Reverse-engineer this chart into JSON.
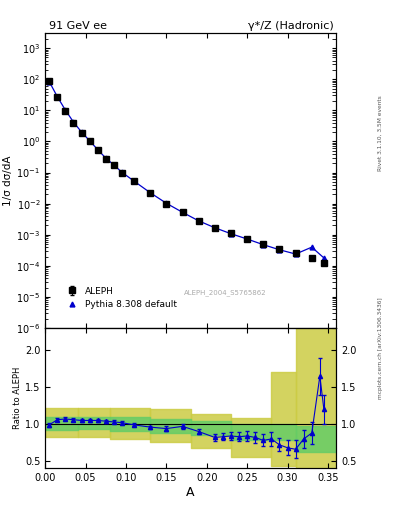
{
  "title_left": "91 GeV ee",
  "title_right": "γ*/Z (Hadronic)",
  "ylabel_main": "1/σ dσ/dA",
  "ylabel_ratio": "Ratio to ALEPH",
  "xlabel": "A",
  "right_label": "Rivet 3.1.10, 3.5M events",
  "watermark": "ALEPH_2004_S5765862",
  "arxiv_label": "mcplots.cern.ch [arXiv:1306.3436]",
  "legend_data": "ALEPH",
  "legend_mc": "Pythia 8.308 default",
  "aleph_x": [
    0.005,
    0.015,
    0.025,
    0.035,
    0.045,
    0.055,
    0.065,
    0.075,
    0.085,
    0.095,
    0.11,
    0.13,
    0.15,
    0.17,
    0.19,
    0.21,
    0.23,
    0.25,
    0.27,
    0.29,
    0.31,
    0.33,
    0.345
  ],
  "aleph_y": [
    85.0,
    26.0,
    9.5,
    4.0,
    1.9,
    1.0,
    0.52,
    0.28,
    0.17,
    0.1,
    0.052,
    0.022,
    0.01,
    0.0052,
    0.0028,
    0.0017,
    0.0011,
    0.00075,
    0.0005,
    0.00035,
    0.00025,
    0.00018,
    0.00012
  ],
  "aleph_yerr": [
    3.0,
    1.0,
    0.4,
    0.15,
    0.07,
    0.04,
    0.02,
    0.012,
    0.007,
    0.004,
    0.002,
    0.0009,
    0.00042,
    0.00022,
    0.00012,
    7e-05,
    5e-05,
    3.5e-05,
    2.5e-05,
    1.8e-05,
    1.4e-05,
    1.2e-05,
    1e-05
  ],
  "pythia_x": [
    0.005,
    0.015,
    0.025,
    0.035,
    0.045,
    0.055,
    0.065,
    0.075,
    0.085,
    0.095,
    0.11,
    0.13,
    0.15,
    0.17,
    0.19,
    0.21,
    0.23,
    0.25,
    0.27,
    0.29,
    0.31,
    0.33,
    0.345
  ],
  "pythia_y": [
    84.0,
    27.5,
    10.2,
    4.2,
    2.0,
    1.05,
    0.545,
    0.292,
    0.175,
    0.102,
    0.053,
    0.0225,
    0.0103,
    0.00527,
    0.0028,
    0.00168,
    0.00108,
    0.00073,
    0.00048,
    0.00033,
    0.00024,
    0.0004,
    0.00018
  ],
  "ratio_x": [
    0.005,
    0.015,
    0.025,
    0.035,
    0.045,
    0.055,
    0.065,
    0.075,
    0.085,
    0.095,
    0.11,
    0.13,
    0.15,
    0.17,
    0.19,
    0.21,
    0.22,
    0.23,
    0.24,
    0.25,
    0.26,
    0.27,
    0.28,
    0.29,
    0.3,
    0.31,
    0.32,
    0.33,
    0.34,
    0.345
  ],
  "ratio_y": [
    0.99,
    1.06,
    1.07,
    1.06,
    1.05,
    1.05,
    1.05,
    1.04,
    1.03,
    1.02,
    0.99,
    0.96,
    0.94,
    0.97,
    0.9,
    0.82,
    0.83,
    0.84,
    0.83,
    0.84,
    0.82,
    0.78,
    0.8,
    0.72,
    0.68,
    0.66,
    0.8,
    0.88,
    1.65,
    1.2
  ],
  "ratio_yerr": [
    0.03,
    0.02,
    0.02,
    0.02,
    0.02,
    0.02,
    0.02,
    0.02,
    0.02,
    0.02,
    0.02,
    0.02,
    0.03,
    0.03,
    0.04,
    0.05,
    0.05,
    0.05,
    0.06,
    0.07,
    0.07,
    0.08,
    0.09,
    0.09,
    0.1,
    0.12,
    0.12,
    0.15,
    0.25,
    0.2
  ],
  "yellow_band_edges": [
    0.0,
    0.04,
    0.08,
    0.13,
    0.18,
    0.23,
    0.28,
    0.31,
    0.36
  ],
  "yellow_band_lo": [
    0.82,
    0.82,
    0.8,
    0.76,
    0.68,
    0.56,
    0.44,
    0.38,
    0.38
  ],
  "yellow_band_hi": [
    1.22,
    1.22,
    1.22,
    1.2,
    1.14,
    1.08,
    1.7,
    2.4,
    2.4
  ],
  "green_band_edges": [
    0.0,
    0.04,
    0.08,
    0.13,
    0.18,
    0.23,
    0.31,
    0.36
  ],
  "green_band_lo": [
    0.92,
    0.93,
    0.91,
    0.88,
    0.85,
    0.78,
    0.62,
    0.62
  ],
  "green_band_hi": [
    1.1,
    1.1,
    1.09,
    1.07,
    1.04,
    1.0,
    0.98,
    0.98
  ],
  "xlim": [
    0.0,
    0.36
  ],
  "ylim_main": [
    1e-06,
    3000
  ],
  "ylim_ratio": [
    0.4,
    2.3
  ],
  "yticks_ratio": [
    0.5,
    1.0,
    1.5,
    2.0
  ],
  "color_data": "#000000",
  "color_mc": "#0000cc",
  "color_green": "#66cc66",
  "color_yellow": "#cccc44",
  "bg_color": "#ffffff"
}
